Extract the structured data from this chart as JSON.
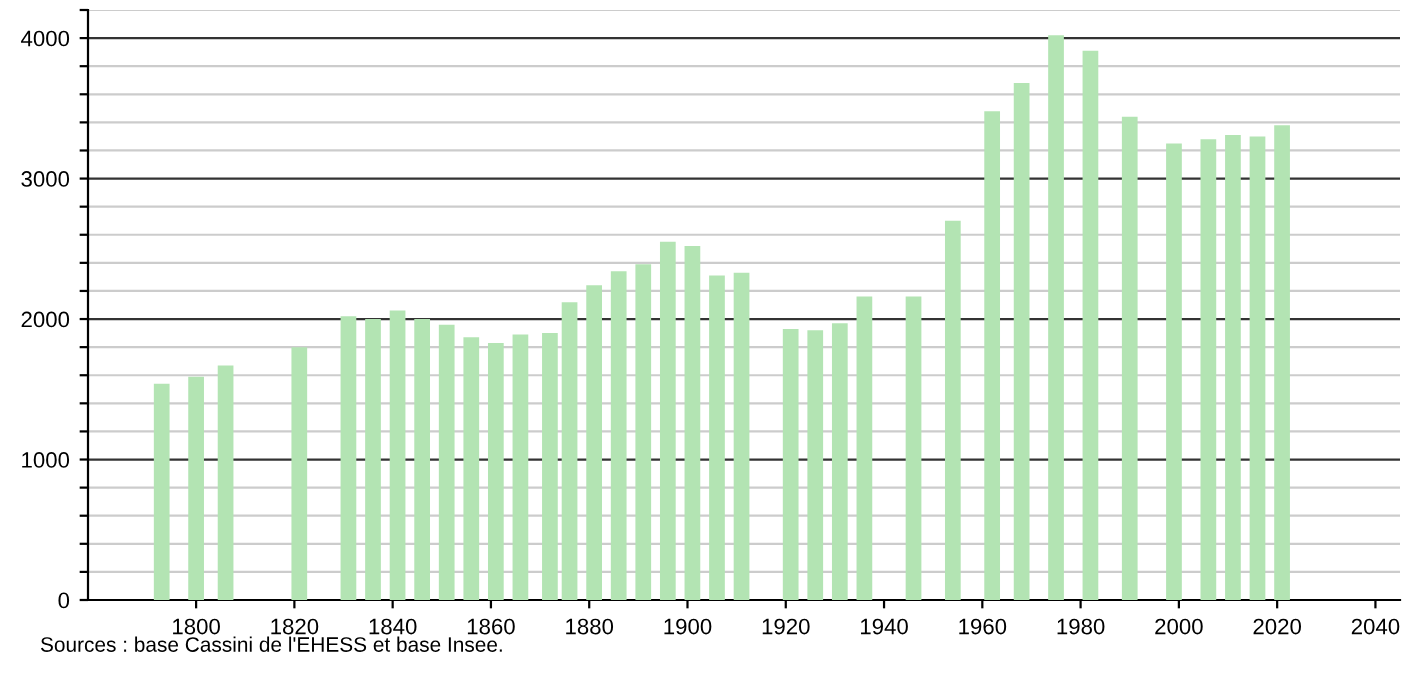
{
  "chart_data": {
    "type": "bar",
    "x": [
      1793,
      1800,
      1806,
      1821,
      1831,
      1836,
      1841,
      1846,
      1851,
      1856,
      1861,
      1866,
      1872,
      1876,
      1881,
      1886,
      1891,
      1896,
      1901,
      1906,
      1911,
      1921,
      1926,
      1931,
      1936,
      1946,
      1954,
      1962,
      1968,
      1975,
      1982,
      1990,
      1999,
      2006,
      2011,
      2016,
      2021
    ],
    "values": [
      1540,
      1590,
      1670,
      1800,
      2020,
      2000,
      2060,
      2000,
      1960,
      1870,
      1830,
      1890,
      1900,
      2120,
      2240,
      2340,
      2390,
      2550,
      2520,
      2310,
      2330,
      1930,
      1920,
      1970,
      2160,
      2160,
      2700,
      3480,
      3680,
      4020,
      3910,
      3440,
      3250,
      3280,
      3310,
      3300,
      3380
    ],
    "color": "#b3e4b3",
    "xlim": [
      1778,
      2045
    ],
    "xticks": [
      1800,
      1820,
      1840,
      1860,
      1880,
      1900,
      1920,
      1940,
      1960,
      1980,
      2000,
      2020,
      2040
    ],
    "ylim": [
      0,
      4200
    ],
    "yticks": [
      0,
      {
        "value": 200,
        "label": null
      },
      {
        "value": 400,
        "label": null
      },
      {
        "value": 600,
        "label": null
      },
      {
        "value": 800,
        "label": null
      },
      1000,
      {
        "value": 1200,
        "label": null
      },
      {
        "value": 1400,
        "label": null
      },
      {
        "value": 1600,
        "label": null
      },
      {
        "value": 1800,
        "label": null
      },
      2000,
      {
        "value": 2200,
        "label": null
      },
      {
        "value": 2400,
        "label": null
      },
      {
        "value": 2600,
        "label": null
      },
      {
        "value": 2800,
        "label": null
      },
      3000,
      {
        "value": 3200,
        "label": null
      },
      {
        "value": 3400,
        "label": null
      },
      {
        "value": 3600,
        "label": null
      },
      {
        "value": 3800,
        "label": null
      },
      4000,
      {
        "value": 4200,
        "label": null
      }
    ],
    "grid": "y",
    "annotations": [
      "Sources : base Cassini de l'EHESS et base Insee."
    ]
  }
}
